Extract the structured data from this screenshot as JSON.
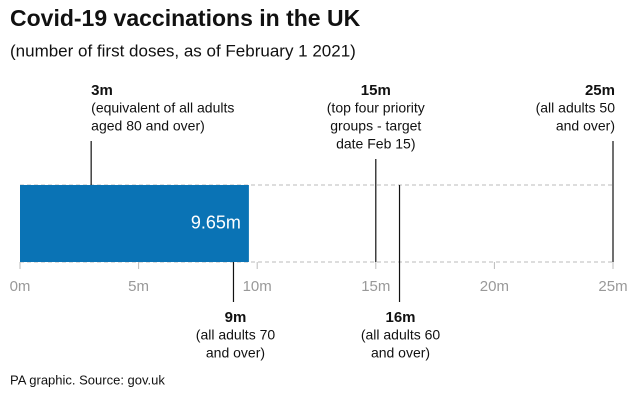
{
  "chart_data": {
    "type": "bar",
    "orientation": "horizontal",
    "title": "Covid-19 vaccinations in the UK",
    "subtitle": "(number of first doses, as of February 1 2021)",
    "source": "PA graphic. Source: gov.uk",
    "categories": [
      null
    ],
    "values": [
      9.65
    ],
    "value_labels": [
      "9.65m"
    ],
    "color": "#0a73b5",
    "xlim": [
      0,
      25
    ],
    "xticks": [
      {
        "value": 0,
        "label": "0m"
      },
      {
        "value": 5,
        "label": "5m"
      },
      {
        "value": 10,
        "label": "10m"
      },
      {
        "value": 15,
        "label": "15m"
      },
      {
        "value": 20,
        "label": "20m"
      },
      {
        "value": 25,
        "label": "25m"
      }
    ],
    "annotations": [
      {
        "value": 3,
        "label": "3m",
        "lines": [
          "(equivalent of all adults",
          "aged 80 and over)"
        ]
      },
      {
        "value": 9,
        "label": "9m",
        "lines": [
          "(all adults 70",
          "and over)"
        ]
      },
      {
        "value": 15,
        "label": "15m",
        "lines": [
          "(top four priority",
          "groups - target",
          "date Feb 15)"
        ]
      },
      {
        "value": 16,
        "label": "16m",
        "lines": [
          "(all adults 60",
          "and over)"
        ]
      },
      {
        "value": 25,
        "label": "25m",
        "lines": [
          "(all adults 50",
          "and over)"
        ]
      }
    ]
  }
}
